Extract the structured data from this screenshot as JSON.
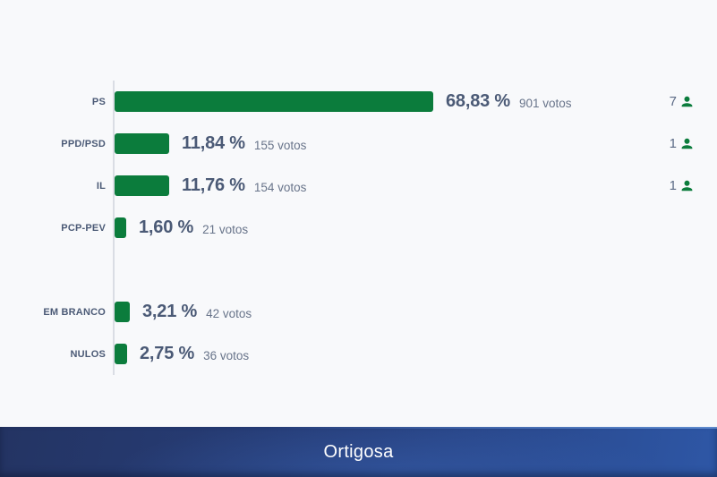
{
  "page": {
    "background": "#f8f9fb"
  },
  "colors": {
    "bar_green": "#0b7c3c",
    "percent_text": "#4b5a76",
    "votes_text": "#68748a",
    "party_label_text": "#4b5a76",
    "mandates_text": "#5b6a85",
    "axis_line": "#dadde4",
    "banner_gradient_start": "#243463",
    "banner_gradient_end": "#2e57a6",
    "banner_text": "#ffffff"
  },
  "chart_data": {
    "type": "bar",
    "orientation": "horizontal",
    "value_unit": "percent",
    "xlim": [
      0,
      100
    ],
    "bar_color": "#0b7c3c",
    "grid": false,
    "groups": [
      {
        "name": "parties",
        "rows": [
          {
            "label": "PS",
            "percent": 68.83,
            "percent_label": "68,83 %",
            "votes": 901,
            "votes_label": "901 votos",
            "mandates": 7
          },
          {
            "label": "PPD/PSD",
            "percent": 11.84,
            "percent_label": "11,84 %",
            "votes": 155,
            "votes_label": "155 votos",
            "mandates": 1
          },
          {
            "label": "IL",
            "percent": 11.76,
            "percent_label": "11,76 %",
            "votes": 154,
            "votes_label": "154 votos",
            "mandates": 1
          },
          {
            "label": "PCP-PEV",
            "percent": 1.6,
            "percent_label": "1,60 %",
            "votes": 21,
            "votes_label": "21 votos",
            "mandates": null
          }
        ]
      },
      {
        "name": "other",
        "rows": [
          {
            "label": "EM BRANCO",
            "percent": 3.21,
            "percent_label": "3,21 %",
            "votes": 42,
            "votes_label": "42 votos",
            "mandates": null
          },
          {
            "label": "NULOS",
            "percent": 2.75,
            "percent_label": "2,75 %",
            "votes": 36,
            "votes_label": "36 votos",
            "mandates": null
          }
        ]
      }
    ]
  },
  "footer": {
    "title": "Ortigosa"
  }
}
